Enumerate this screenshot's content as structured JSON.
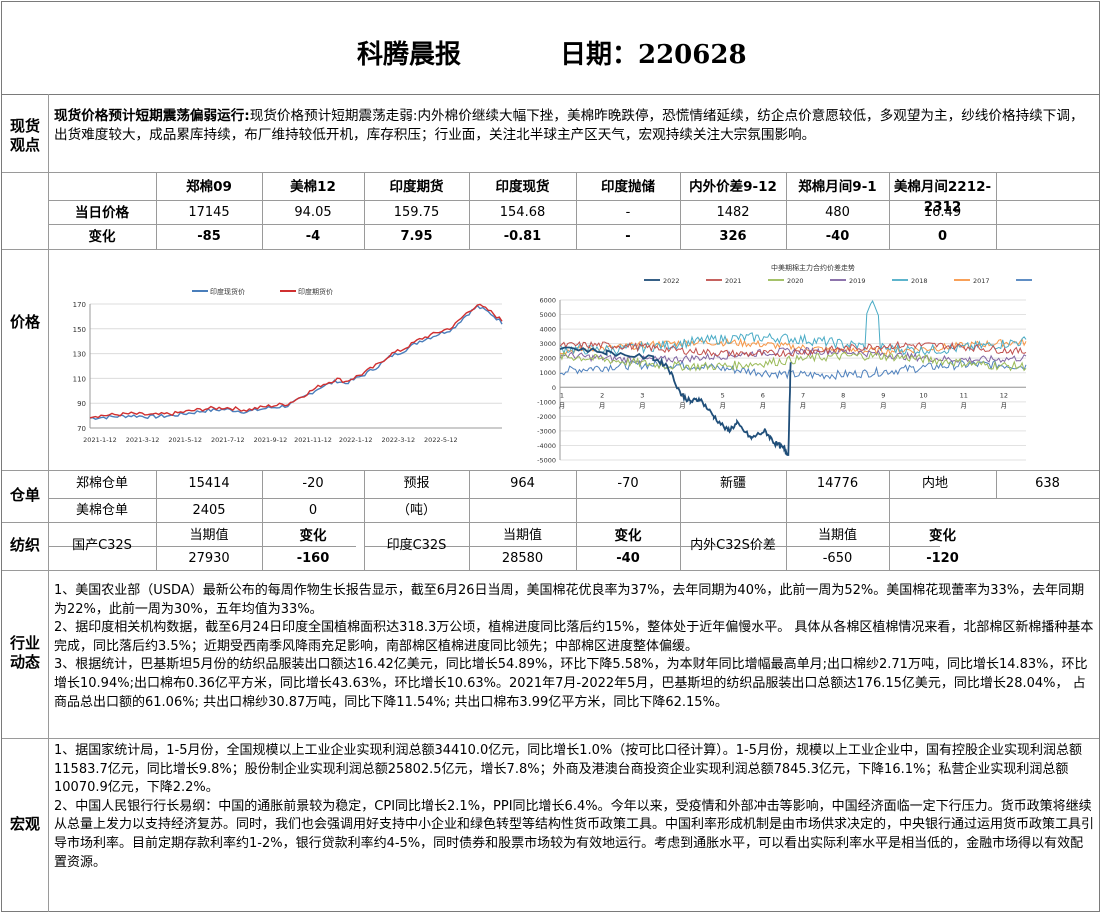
{
  "title": {
    "name": "科腾晨报",
    "date_label": "日期：220628"
  },
  "spot": {
    "side_label_1": "现货",
    "side_label_2": "观点",
    "lead": "现货价格预计短期震荡偏弱运行:",
    "text": "现货价格预计短期震荡走弱:内外棉价继续大幅下挫，美棉昨晚跌停，恐慌情绪延续，纺企点价意愿较低，多观望为主，纱线价格持续下调，出货难度较大，成品累库持续，布厂维持较低开机，库存积压；行业面，关注北半球主产区天气，宏观持续关注大宗氛围影响。"
  },
  "price_table": {
    "headers": [
      "郑棉09",
      "美棉12",
      "印度期货",
      "印度现货",
      "印度抛储",
      "内外价差9-12",
      "郑棉月间9-1",
      "美棉月间2212-2312"
    ],
    "row1_label": "当日价格",
    "row1": [
      "17145",
      "94.05",
      "159.75",
      "154.68",
      "-",
      "1482",
      "480",
      "16.49"
    ],
    "row2_label": "变化",
    "row2": [
      "-85",
      "-4",
      "7.95",
      "-0.81",
      "-",
      "326",
      "-40",
      "0"
    ]
  },
  "price_section": {
    "side_label": "价格"
  },
  "chart_left": {
    "type": "line",
    "legend": [
      "印度现货价",
      "印度期货价"
    ],
    "colors": [
      "#4a7ebb",
      "#d03030"
    ],
    "ylim": [
      70,
      170
    ],
    "yticks": [
      "70",
      "90",
      "110",
      "130",
      "150",
      "170"
    ],
    "xticks": [
      "2021-1-12",
      "2021-3-12",
      "2021-5-12",
      "2021-7-12",
      "2021-9-12",
      "2021-11-12",
      "2022-1-12",
      "2022-3-12",
      "2022-5-12"
    ]
  },
  "chart_right": {
    "type": "line",
    "title": "中美期棉主力合约价差走势",
    "legend": [
      "2022",
      "2021",
      "2020",
      "2019",
      "2018",
      "2017",
      "2016"
    ],
    "colors": [
      "#1f4e79",
      "#c0504d",
      "#9bbb59",
      "#8064a2",
      "#4bacc6",
      "#f79646",
      "#4f81bd"
    ],
    "ylim": [
      -5000,
      6000
    ],
    "yticks": [
      "6000",
      "5000",
      "4000",
      "3000",
      "2000",
      "1000",
      "0",
      "-1000",
      "-2000",
      "-3000",
      "-4000",
      "-5000"
    ],
    "xticks": [
      "1",
      "2",
      "3",
      "4",
      "5",
      "6",
      "7",
      "8",
      "9",
      "10",
      "11",
      "12"
    ],
    "xunit": "月"
  },
  "warehouse": {
    "side_label": "仓单",
    "r1": [
      "郑棉仓单",
      "15414",
      "-20",
      "预报",
      "964",
      "-70",
      "新疆",
      "14776",
      "内地",
      "638"
    ],
    "r2": [
      "美棉仓单",
      "2405",
      "0",
      "（吨）"
    ]
  },
  "spinning": {
    "side_label": "纺织",
    "item1": "国产C32S",
    "item2": "印度C32S",
    "item3": "内外C32S价差",
    "cur_label": "当期值",
    "chg_label": "变化",
    "v1": "27930",
    "c1": "-160",
    "v2": "28580",
    "c2": "-40",
    "v3": "-650",
    "c3": "-120"
  },
  "industry": {
    "side_label_1": "行业",
    "side_label_2": "动态",
    "p1": "1、美国农业部（USDA）最新公布的每周作物生长报告显示，截至6月26日当周，美国棉花优良率为37%，去年同期为40%，此前一周为52%。美国棉花现蕾率为33%，去年同期为22%，此前一周为30%，五年均值为33%。",
    "p2": "2、据印度相关机构数据，截至6月24日印度全国植棉面积达318.3万公顷，植棉进度同比落后约15%，整体处于近年偏慢水平。 具体从各棉区植棉情况来看，北部棉区新棉播种基本完成，同比落后约3.5%；近期受西南季风降雨充足影响，南部棉区植棉进度同比领先；中部棉区进度整体偏缓。",
    "p3": "3、根据统计，巴基斯坦5月份的纺织品服装出口额达16.42亿美元，同比增长54.89%，环比下降5.58%，为本财年同比增幅最高单月;出口棉纱2.71万吨，同比增长14.83%，环比增长10.94%;出口棉布0.36亿平方米，同比增长43.63%，环比增长10.63%。2021年7月-2022年5月，巴基斯坦的纺织品服装出口总额达176.15亿美元，同比增长28.04%， 占商品总出口额的61.06%; 共出口棉纱30.87万吨，同比下降11.54%; 共出口棉布3.99亿平方米，同比下降62.15%。"
  },
  "macro": {
    "side_label": "宏观",
    "p1": "1、据国家统计局，1-5月份，全国规模以上工业企业实现利润总额34410.0亿元，同比增长1.0%（按可比口径计算）。1-5月份，规模以上工业企业中，国有控股企业实现利润总额11583.7亿元，同比增长9.8%；股份制企业实现利润总额25802.5亿元，增长7.8%；外商及港澳台商投资企业实现利润总额7845.3亿元，下降16.1%；私营企业实现利润总额10070.9亿元，下降2.2%。",
    "p2": "2、中国人民银行行长易纲：中国的通胀前景较为稳定，CPI同比增长2.1%，PPI同比增长6.4%。今年以来，受疫情和外部冲击等影响，中国经济面临一定下行压力。货币政策将继续从总量上发力以支持经济复苏。同时，我们也会强调用好支持中小企业和绿色转型等结构性货币政策工具。中国利率形成机制是由市场供求决定的，中央银行通过运用货币政策工具引导市场利率。目前定期存款利率约1-2%，银行贷款利率约4-5%，同时债券和股票市场较为有效地运行。考虑到通胀水平，可以看出实际利率水平是相当低的，金融市场得以有效配置资源。"
  }
}
